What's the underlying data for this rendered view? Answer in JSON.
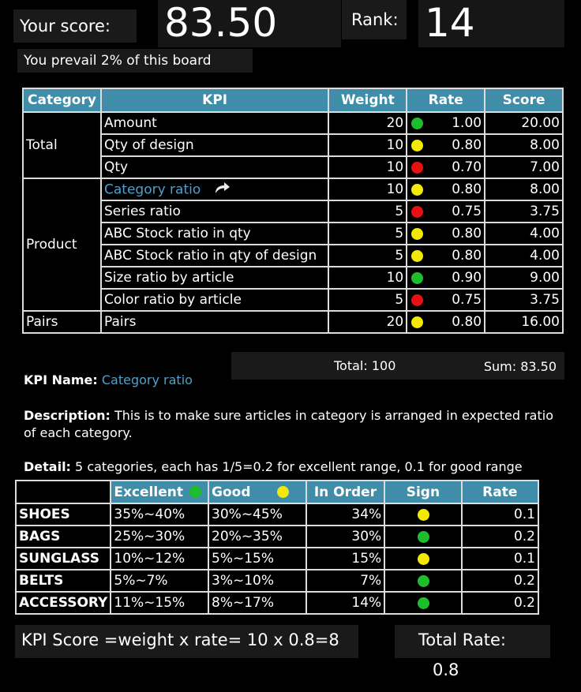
{
  "header": {
    "score_label": "Your score:",
    "score_value": "83.50",
    "rank_label": "Rank:",
    "rank_value": "14",
    "prevail_text": "You prevail 2% of this board"
  },
  "kpi_table": {
    "headers": [
      "Category",
      "KPI",
      "Weight",
      "Rate",
      "Score"
    ],
    "groups": [
      {
        "category": "Total",
        "rows": [
          {
            "kpi": "Amount",
            "weight": "20",
            "sign": "green",
            "rate": "1.00",
            "score": "20.00"
          },
          {
            "kpi": "Qty of design",
            "weight": "10",
            "sign": "yellow",
            "rate": "0.80",
            "score": "8.00"
          },
          {
            "kpi": "Qty",
            "weight": "10",
            "sign": "red",
            "rate": "0.70",
            "score": "7.00"
          }
        ]
      },
      {
        "category": "Product",
        "rows": [
          {
            "kpi": "Category ratio",
            "weight": "10",
            "sign": "yellow",
            "rate": "0.80",
            "score": "8.00",
            "link": true
          },
          {
            "kpi": "Series ratio",
            "weight": "5",
            "sign": "red",
            "rate": "0.75",
            "score": "3.75"
          },
          {
            "kpi": "ABC Stock ratio in qty",
            "weight": "5",
            "sign": "yellow",
            "rate": "0.80",
            "score": "4.00"
          },
          {
            "kpi": "ABC Stock ratio in qty of design",
            "weight": "5",
            "sign": "yellow",
            "rate": "0.80",
            "score": "4.00"
          },
          {
            "kpi": "Size ratio by article",
            "weight": "10",
            "sign": "green",
            "rate": "0.90",
            "score": "9.00"
          },
          {
            "kpi": "Color ratio by article",
            "weight": "5",
            "sign": "red",
            "rate": "0.75",
            "score": "3.75"
          }
        ]
      },
      {
        "category": "Pairs",
        "rows": [
          {
            "kpi": "Pairs",
            "weight": "20",
            "sign": "yellow",
            "rate": "0.80",
            "score": "16.00"
          }
        ]
      }
    ],
    "total_text": "Total: 100",
    "sum_text": "Sum: 83.50"
  },
  "kpi_detail": {
    "name_label": "KPI Name:",
    "name_value": "Category ratio",
    "desc_label": "Description:",
    "desc_text": "This is to make sure articles in category is arranged in expected ratio of each category.",
    "detail_label": "Detail:",
    "detail_text": "5 categories, each has 1/5=0.2 for excellent range, 0.1 for good range"
  },
  "detail_table": {
    "headers": {
      "excellent": "Excellent",
      "good": "Good",
      "in_order": "In Order",
      "sign": "Sign",
      "rate": "Rate"
    },
    "rows": [
      {
        "name": "SHOES",
        "excellent": "35%~40%",
        "good": "30%~45%",
        "in_order": "34%",
        "sign": "yellow",
        "rate": "0.1"
      },
      {
        "name": "BAGS",
        "excellent": "25%~30%",
        "good": "20%~35%",
        "in_order": "30%",
        "sign": "green",
        "rate": "0.2"
      },
      {
        "name": "SUNGLASS",
        "excellent": "10%~12%",
        "good": "5%~15%",
        "in_order": "15%",
        "sign": "yellow",
        "rate": "0.1"
      },
      {
        "name": "BELTS",
        "excellent": "5%~7%",
        "good": "3%~10%",
        "in_order": "7%",
        "sign": "green",
        "rate": "0.2"
      },
      {
        "name": "ACCESSORY",
        "excellent": "11%~15%",
        "good": "8%~17%",
        "in_order": "14%",
        "sign": "green",
        "rate": "0.2"
      }
    ]
  },
  "footer": {
    "formula": "KPI Score =weight x rate= 10 x 0.8=8",
    "total_rate_label": "Total Rate:",
    "total_rate_value": "0.8"
  },
  "colors": {
    "header_bg": "#3f8da8",
    "green": "#1dbd2b",
    "yellow": "#f2ea06",
    "red": "#e81010",
    "link": "#4fa0cc"
  }
}
